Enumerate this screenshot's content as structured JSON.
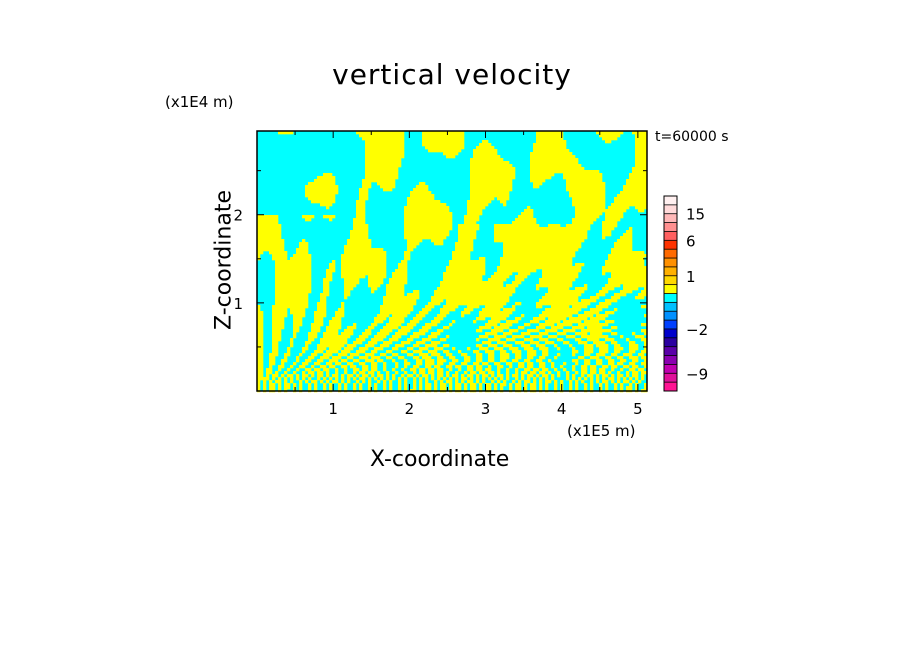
{
  "chart_data": {
    "type": "heatmap",
    "title": "vertical velocity",
    "xlabel": "X-coordinate",
    "ylabel": "Z-coordinate",
    "x_multiplier": "(x1E5 m)",
    "y_multiplier": "(x1E4 m)",
    "time_label": "t=60000 s",
    "xlim": [
      0,
      5.12
    ],
    "ylim": [
      0,
      2.95
    ],
    "x_ticks": [
      1,
      2,
      3,
      4,
      5
    ],
    "x_tick_labels": [
      "1",
      "2",
      "3",
      "4",
      "5"
    ],
    "y_ticks": [
      1,
      2
    ],
    "y_tick_labels": [
      "1",
      "2"
    ],
    "field_colors": {
      "positive": "#ffff00",
      "negative": "#00ffff"
    },
    "colorbar": {
      "levels": [
        -12,
        -10.5,
        -9,
        -7.5,
        -6,
        -4.5,
        -3,
        -2,
        -1.5,
        -1,
        -0.5,
        0,
        0.5,
        1,
        1.5,
        2,
        4,
        6,
        9,
        12,
        15,
        18,
        22
      ],
      "colors": [
        "#ff1493",
        "#e0109a",
        "#c000b0",
        "#8a00b0",
        "#5a00a8",
        "#2a00a0",
        "#0000cc",
        "#0040ff",
        "#0090ff",
        "#00c0ff",
        "#00ffff",
        "#ffff00",
        "#ffd800",
        "#ffb000",
        "#ff9000",
        "#ff6a00",
        "#ff3300",
        "#ff6060",
        "#ff9090",
        "#ffb8b8",
        "#ffdada",
        "#fff0f0"
      ],
      "tick_values": [
        15,
        6,
        1,
        -2,
        -9
      ],
      "tick_labels": [
        "15",
        "6",
        "1",
        "−2",
        "−9"
      ]
    }
  }
}
